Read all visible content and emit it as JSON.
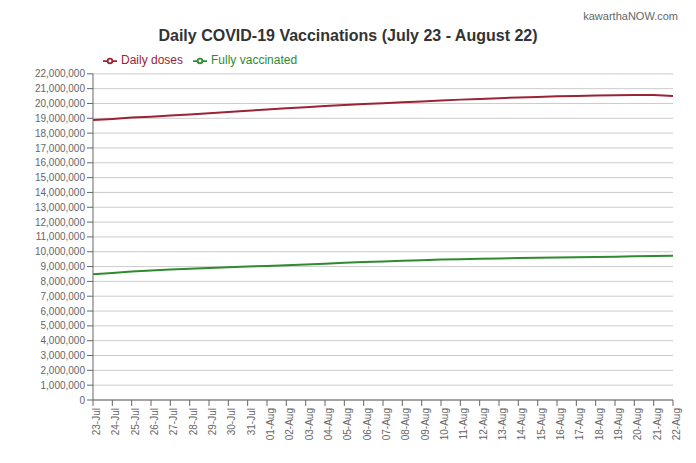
{
  "chart_data": {
    "type": "line",
    "title": "Daily COVID-19 Vaccinations (July 23 - August 22)",
    "annotations": [
      "kawarthaNOW.com"
    ],
    "categories": [
      "23-Jul",
      "24-Jul",
      "25-Jul",
      "26-Jul",
      "27-Jul",
      "28-Jul",
      "29-Jul",
      "30-Jul",
      "31-Jul",
      "01-Aug",
      "02-Aug",
      "03-Aug",
      "04-Aug",
      "05-Aug",
      "06-Aug",
      "07-Aug",
      "08-Aug",
      "09-Aug",
      "10-Aug",
      "11-Aug",
      "12-Aug",
      "13-Aug",
      "14-Aug",
      "15-Aug",
      "16-Aug",
      "17-Aug",
      "18-Aug",
      "19-Aug",
      "20-Aug",
      "21-Aug",
      "22-Aug"
    ],
    "series": [
      {
        "name": "Daily doses",
        "color": "#9b2335",
        "values": [
          18880000,
          18960000,
          19050000,
          19110000,
          19190000,
          19260000,
          19340000,
          19430000,
          19510000,
          19590000,
          19670000,
          19750000,
          19830000,
          19890000,
          19960000,
          20020000,
          20080000,
          20140000,
          20200000,
          20260000,
          20310000,
          20360000,
          20400000,
          20440000,
          20480000,
          20510000,
          20540000,
          20560000,
          20570000,
          20580000,
          20500000
        ]
      },
      {
        "name": "Fully vaccinated",
        "color": "#2e8b2e",
        "values": [
          8480000,
          8570000,
          8660000,
          8730000,
          8800000,
          8860000,
          8910000,
          8960000,
          9000000,
          9040000,
          9090000,
          9140000,
          9190000,
          9250000,
          9300000,
          9350000,
          9390000,
          9430000,
          9470000,
          9500000,
          9530000,
          9550000,
          9570000,
          9590000,
          9610000,
          9630000,
          9650000,
          9670000,
          9690000,
          9710000,
          9730000
        ]
      }
    ],
    "ylim": [
      0,
      22000000
    ],
    "yticks": [
      0,
      {
        "value": 1000000,
        "label": "1,000,000"
      },
      {
        "value": 2000000,
        "label": "2,000,000"
      },
      {
        "value": 3000000,
        "label": "3,000,000"
      },
      {
        "value": 4000000,
        "label": "4,000,000"
      },
      {
        "value": 5000000,
        "label": "5,000,000"
      },
      {
        "value": 6000000,
        "label": "6,000,000"
      },
      {
        "value": 7000000,
        "label": "7,000,000"
      },
      {
        "value": 8000000,
        "label": "8,000,000"
      },
      {
        "value": 9000000,
        "label": "9,000,000"
      },
      {
        "value": 10000000,
        "label": "10,000,000"
      },
      {
        "value": 11000000,
        "label": "11,000,000"
      },
      {
        "value": 12000000,
        "label": "12,000,000"
      },
      {
        "value": 13000000,
        "label": "13,000,000"
      },
      {
        "value": 14000000,
        "label": "14,000,000"
      },
      {
        "value": 15000000,
        "label": "15,000,000"
      },
      {
        "value": 16000000,
        "label": "16,000,000"
      },
      {
        "value": 17000000,
        "label": "17,000,000"
      },
      {
        "value": 18000000,
        "label": "18,000,000"
      },
      {
        "value": 19000000,
        "label": "19,000,000"
      },
      {
        "value": 20000000,
        "label": "20,000,000"
      },
      {
        "value": 21000000,
        "label": "21,000,000"
      },
      {
        "value": 22000000,
        "label": "22,000,000"
      }
    ],
    "grid": true,
    "legend": "upper left"
  }
}
